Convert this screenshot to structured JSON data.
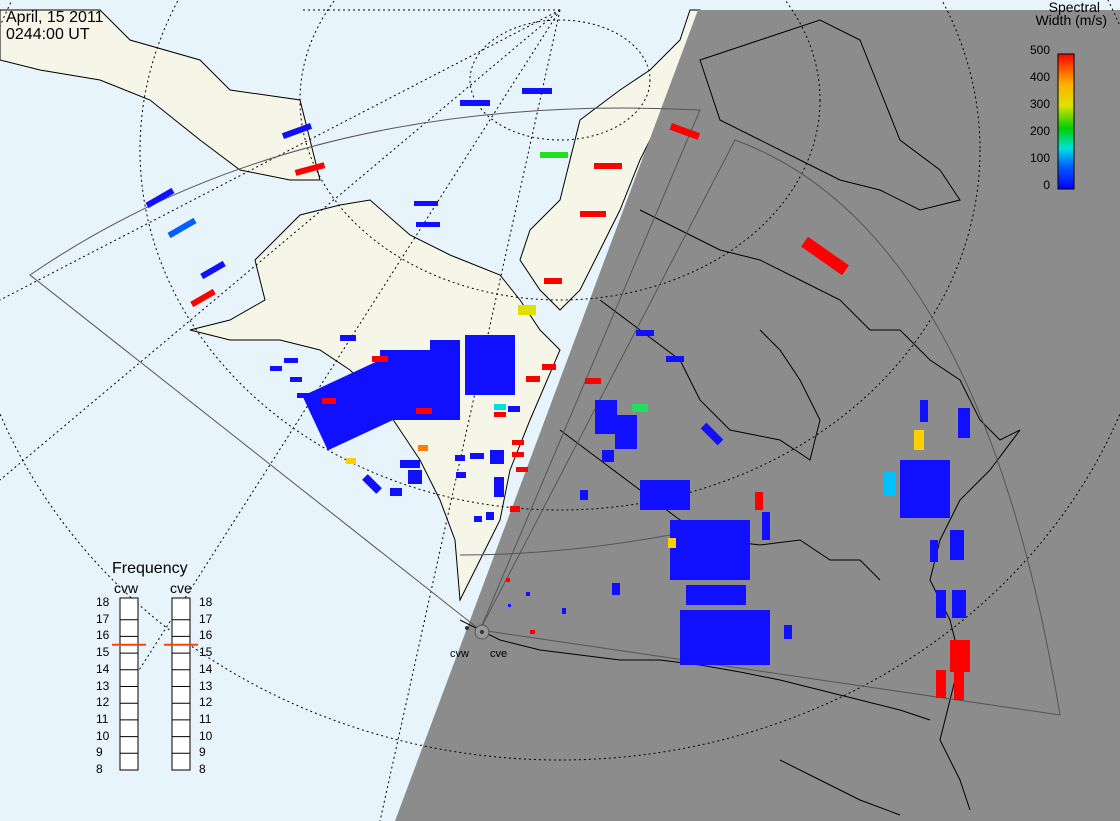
{
  "header": {
    "date": "April, 15 2011",
    "time": "0244:00 UT"
  },
  "colorbar": {
    "title_line1": "Spectral",
    "title_line2": "Width (m/s)",
    "ticks": [
      "500",
      "400",
      "300",
      "200",
      "100",
      "0"
    ],
    "colors": [
      "#ff0000",
      "#ffb000",
      "#e0e000",
      "#00d000",
      "#00e0e0",
      "#0060ff",
      "#0000ff"
    ]
  },
  "frequency_panel": {
    "title": "Frequency",
    "radar_left": "cvw",
    "radar_right": "cve",
    "ticks": [
      "18",
      "17",
      "16",
      "15",
      "14",
      "13",
      "12",
      "11",
      "10",
      "9",
      "8"
    ],
    "cvw_value": 15.5,
    "cve_value": 15.5,
    "indicator_color": "#ff4000"
  },
  "radar_sites": [
    "cvw",
    "cve"
  ],
  "colors": {
    "ocean": "#e8f4fb",
    "land": "#f6f6e8",
    "night": "#8c8c8c",
    "coast": "#000000"
  }
}
